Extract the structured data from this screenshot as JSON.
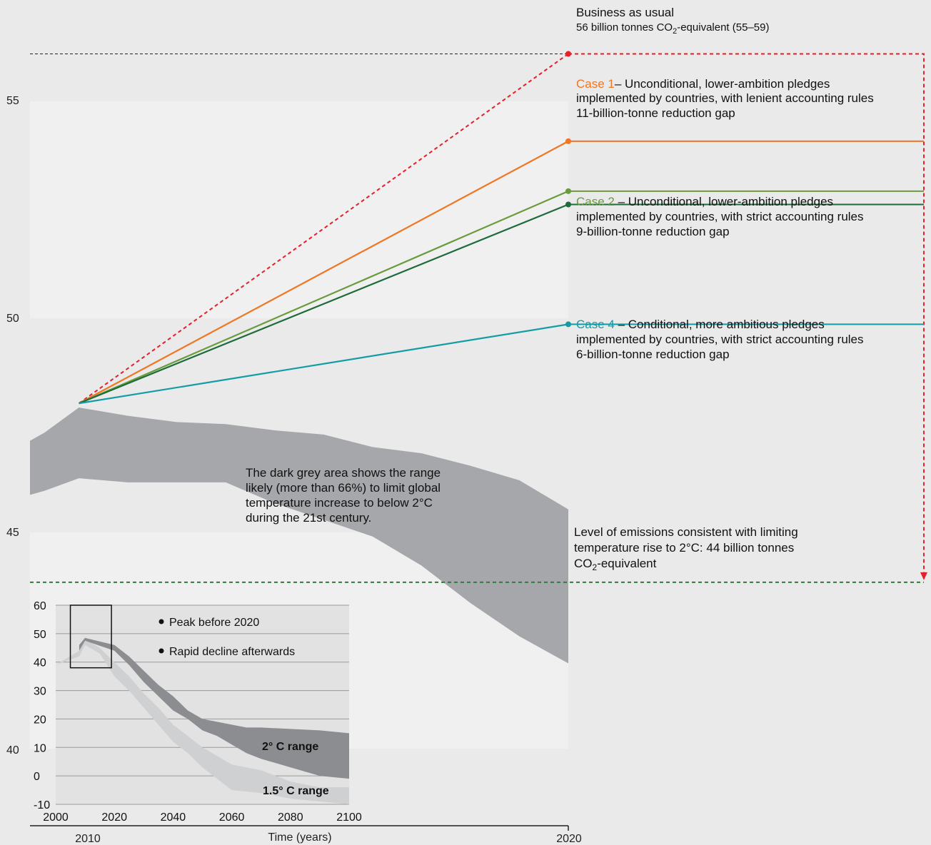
{
  "chart_data": [
    {
      "type": "line",
      "title": "",
      "xlabel": "Time (years)",
      "x_ticks": [
        "2010",
        "2020"
      ],
      "y_ticks": [
        "55",
        "50",
        "45",
        "40"
      ],
      "xlim": [
        2009,
        2020
      ],
      "ylim": [
        39.9,
        57.5
      ],
      "start": {
        "x": 2010,
        "y": 48.2
      },
      "series": [
        {
          "key": "bau",
          "name": "Business as usual",
          "color": "#e3202b",
          "y2020": 56.6
        },
        {
          "key": "case1",
          "name": "Case 1",
          "color": "#ef7622",
          "y2020": 54.5
        },
        {
          "key": "case2_light",
          "name": "",
          "color": "#6a9b3c",
          "y2020": 53.3
        },
        {
          "key": "case2",
          "name": "Case 2",
          "color": "#1e6b3b",
          "y2020": 52.98
        },
        {
          "key": "case4",
          "name": "Case 4",
          "color": "#149ca4",
          "y2020": 50.1
        }
      ],
      "target_level": {
        "value": 43.9,
        "color": "#2e7d3e"
      },
      "band_2c": {
        "color": "#a6a7aa",
        "x": [
          2009,
          2009.3,
          2010,
          2011,
          2012,
          2013,
          2014,
          2015,
          2016,
          2017,
          2018,
          2019,
          2020
        ],
        "upper": [
          47.3,
          47.5,
          48.1,
          47.9,
          47.75,
          47.7,
          47.55,
          47.45,
          47.15,
          47.0,
          46.7,
          46.35,
          45.65
        ],
        "lower": [
          46.0,
          46.1,
          46.4,
          46.3,
          46.3,
          46.3,
          45.8,
          45.4,
          45.0,
          44.3,
          43.4,
          42.6,
          41.95
        ]
      },
      "annotations": {
        "bau_title": "Business as usual",
        "bau_desc": "56 billion tonnes CO",
        "bau_desc_sub": "2",
        "bau_desc_rest": "-equivalent (55–59)",
        "case1_label": "Case 1",
        "case1_line1": "– Unconditional, lower-ambition pledges",
        "case1_line2": "implemented by countries, with lenient accounting rules",
        "case1_line3": "11-billion-tonne reduction gap",
        "case2_label": "Case 2",
        "case2_line1": " – Unconditional, lower-ambition pledges",
        "case2_line2": "implemented by countries, with strict accounting rules",
        "case2_line3": "9-billion-tonne reduction gap",
        "case4_label": "Case 4",
        "case4_line1": " – Conditional, more ambitious pledges",
        "case4_line2": "implemented by countries, with strict accounting rules",
        "case4_line3": "6-billion-tonne reduction gap",
        "band_note": [
          "The dark grey area shows the range",
          "likely (more than 66%) to limit global",
          "temperature increase to below 2°C",
          "during the 21st century."
        ],
        "target_line1": "Level of emissions consistent with limiting",
        "target_line2": "temperature rise to 2°C: 44 billion tonnes",
        "target_line3_a": "CO",
        "target_line3_sub": "2",
        "target_line3_b": "-equivalent"
      }
    },
    {
      "type": "area",
      "title": "",
      "x_ticks": [
        "2000",
        "2020",
        "2040",
        "2060",
        "2080",
        "2100"
      ],
      "y_ticks": [
        "60",
        "50",
        "40",
        "30",
        "20",
        "10",
        "0",
        "-10"
      ],
      "xlim": [
        2000,
        2100
      ],
      "ylim": [
        -10,
        60
      ],
      "bullets": [
        "Peak before 2020",
        "Rapid decline afterwards"
      ],
      "range_2c": {
        "label": "2° C range",
        "color": "#8c8d90",
        "x": [
          2008,
          2010,
          2020,
          2025,
          2030,
          2035,
          2040,
          2045,
          2050,
          2055,
          2060,
          2065,
          2070,
          2080,
          2090,
          2100
        ],
        "upper": [
          46,
          48.5,
          46,
          42,
          37,
          32,
          28,
          23,
          20,
          19,
          18,
          17,
          17,
          16.5,
          16,
          15
        ],
        "lower": [
          44,
          47.5,
          44,
          39,
          33,
          28,
          23,
          20,
          16,
          14,
          11,
          8,
          6,
          3,
          0,
          -1
        ]
      },
      "range_15c": {
        "label": "1.5° C range",
        "color": "#cfd0d2",
        "x": [
          2000,
          2008,
          2010,
          2015,
          2020,
          2025,
          2030,
          2035,
          2040,
          2045,
          2050,
          2055,
          2060,
          2070,
          2080,
          2090,
          2100
        ],
        "upper": [
          39,
          44,
          48,
          45,
          40,
          35,
          29,
          24,
          18,
          14,
          10,
          7,
          4,
          2,
          -2,
          -4,
          -4
        ],
        "lower": [
          39,
          42,
          46,
          43,
          35,
          30,
          24,
          18,
          12,
          8,
          3,
          -1,
          -5,
          -6,
          -8,
          -9,
          -10
        ]
      },
      "highlight_box": {
        "x": [
          2005,
          2019
        ],
        "y": [
          38,
          60
        ]
      }
    }
  ]
}
